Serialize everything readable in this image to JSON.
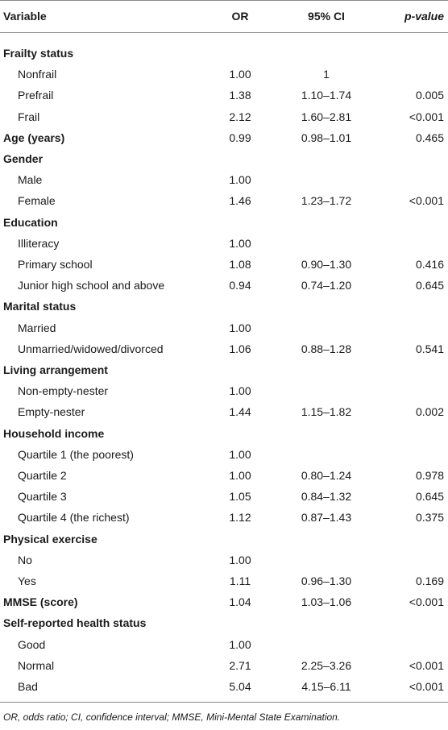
{
  "table": {
    "header": [
      "Variable",
      "OR",
      "95% CI",
      "p-value"
    ],
    "groups": [
      {
        "label": "Frailty status",
        "rows": [
          [
            "Nonfrail",
            "1.00",
            "1",
            null
          ],
          [
            "Prefrail",
            "1.38",
            "1.10–1.74",
            "0.005"
          ],
          [
            "Frail",
            "2.12",
            "1.60–2.81",
            "<0.001"
          ]
        ]
      },
      {
        "label": "Age (years)",
        "values": [
          "0.99",
          "0.98–1.01",
          "0.465"
        ]
      },
      {
        "label": "Gender",
        "rows": [
          [
            "Male",
            "1.00",
            null,
            null
          ],
          [
            "Female",
            "1.46",
            "1.23–1.72",
            "<0.001"
          ]
        ]
      },
      {
        "label": "Education",
        "rows": [
          [
            "Illiteracy",
            "1.00",
            null,
            null
          ],
          [
            "Primary school",
            "1.08",
            "0.90–1.30",
            "0.416"
          ],
          [
            "Junior high school and above",
            "0.94",
            "0.74–1.20",
            "0.645"
          ]
        ]
      },
      {
        "label": "Marital status",
        "rows": [
          [
            "Married",
            "1.00",
            null,
            null
          ],
          [
            "Unmarried/widowed/divorced",
            "1.06",
            "0.88–1.28",
            "0.541"
          ]
        ]
      },
      {
        "label": "Living arrangement",
        "rows": [
          [
            "Non-empty-nester",
            "1.00",
            null,
            null
          ],
          [
            "Empty-nester",
            "1.44",
            "1.15–1.82",
            "0.002"
          ]
        ]
      },
      {
        "label": "Household income",
        "rows": [
          [
            "Quartile 1 (the poorest)",
            "1.00",
            null,
            null
          ],
          [
            "Quartile 2",
            "1.00",
            "0.80–1.24",
            "0.978"
          ],
          [
            "Quartile 3",
            "1.05",
            "0.84–1.32",
            "0.645"
          ],
          [
            "Quartile 4 (the richest)",
            "1.12",
            "0.87–1.43",
            "0.375"
          ]
        ]
      },
      {
        "label": "Physical exercise",
        "rows": [
          [
            "No",
            "1.00",
            null,
            null
          ],
          [
            "Yes",
            "1.11",
            "0.96–1.30",
            "0.169"
          ]
        ]
      },
      {
        "label": "MMSE (score)",
        "values": [
          "1.04",
          "1.03–1.06",
          "<0.001"
        ]
      },
      {
        "label": "Self-reported health status",
        "rows": [
          [
            "Good",
            "1.00",
            null,
            null
          ],
          [
            "Normal",
            "2.71",
            "2.25–3.26",
            "<0.001"
          ],
          [
            "Bad",
            "5.04",
            "4.15–6.11",
            "<0.001"
          ]
        ]
      }
    ],
    "footnote": "OR, odds ratio; CI, confidence interval; MMSE, Mini-Mental State Examination."
  }
}
